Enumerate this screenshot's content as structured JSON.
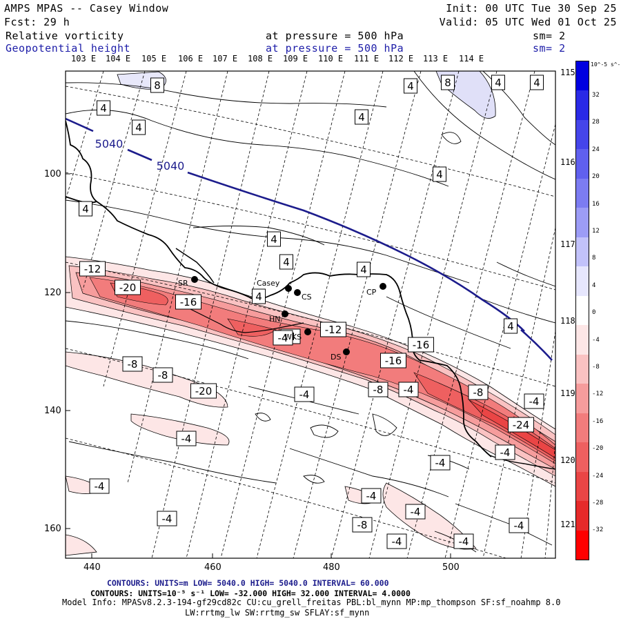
{
  "header": {
    "title": "AMPS MPAS -- Casey Window",
    "init": "Init: 00 UTC Tue 30 Sep 25",
    "forecast": "Fcst:   29 h",
    "valid": "Valid: 05 UTC Wed 01 Oct 25",
    "field1_name": "Relative vorticity",
    "field1_level": "at pressure =  500 hPa",
    "field1_smooth": "sm= 2",
    "field2_name": "Geopotential height",
    "field2_level": "at pressure =  500 hPa",
    "field2_smooth": "sm= 2"
  },
  "longitude_labels_top": [
    "103 E",
    "104 E",
    "105 E",
    "106 E",
    "107 E",
    "108 E",
    "109 E",
    "110 E",
    "111 E",
    "112 E",
    "113 E",
    "114 E"
  ],
  "longitude_labels_right": [
    "115 E",
    "116 E",
    "117 E",
    "118 E",
    "119 E",
    "120 E",
    "121 E"
  ],
  "x_axis_ticks": [
    "440",
    "460",
    "480",
    "500"
  ],
  "y_axis_ticks": [
    "100",
    "120",
    "140",
    "160"
  ],
  "stations": [
    "SR",
    "Casey",
    "CS",
    "CP",
    "HN",
    "WKS",
    "DS"
  ],
  "height_contour_labels": [
    "5040",
    "5040"
  ],
  "vorticity_labels": [
    "8",
    "8",
    "4",
    "4",
    "4",
    "4",
    "4",
    "4",
    "4",
    "4",
    "4",
    "4",
    "4",
    "4",
    "4",
    "-12",
    "-20",
    "-16",
    "-4",
    "-8",
    "-8",
    "-4",
    "-12",
    "-16",
    "-16",
    "-8",
    "-4",
    "-8",
    "-20",
    "-4",
    "-4",
    "-24",
    "-4",
    "-4",
    "-4",
    "-4",
    "-4",
    "-8",
    "-4",
    "-4",
    "-4",
    "-4",
    "-4"
  ],
  "colorbar": {
    "unit": "10^-5 s^-1",
    "labels": [
      "32",
      "28",
      "24",
      "20",
      "16",
      "12",
      "8",
      "4",
      "0",
      "-4",
      "-8",
      "-12",
      "-16",
      "-20",
      "-24",
      "-28",
      "-32"
    ],
    "colors": [
      "#0000e0",
      "#2a2ae6",
      "#4545ea",
      "#6060ee",
      "#7c7cf2",
      "#9c9cf6",
      "#c2c2fa",
      "#e6e6fd",
      "#ffffff",
      "#fde6e6",
      "#fac2c2",
      "#f69c9c",
      "#f27c7c",
      "#ee6060",
      "#ea4545",
      "#e62a2a",
      "#ff0000"
    ]
  },
  "footer": {
    "contours1": "CONTOURS:  UNITS=m  LOW=  5040.0          HIGH=  5040.0          INTERVAL=   60.000",
    "contours2": "CONTOURS:  UNITS=10⁻⁵ s⁻¹  LOW= -32.000          HIGH=  32.000          INTERVAL=   4.0000",
    "model_info": "Model Info: MPASv8.2.3-194-gf29cd82c CU:cu_grell_freitas PBL:bl_mynn MP:mp_thompson SF:sf_noahmp 8.0",
    "model_info2": "LW:rrtmg_lw SW:rrtmg_sw SFLAY:sf_mynn"
  },
  "colors": {
    "header_blue": "#1c1ca8",
    "height_contour": "#1c1c8c"
  }
}
